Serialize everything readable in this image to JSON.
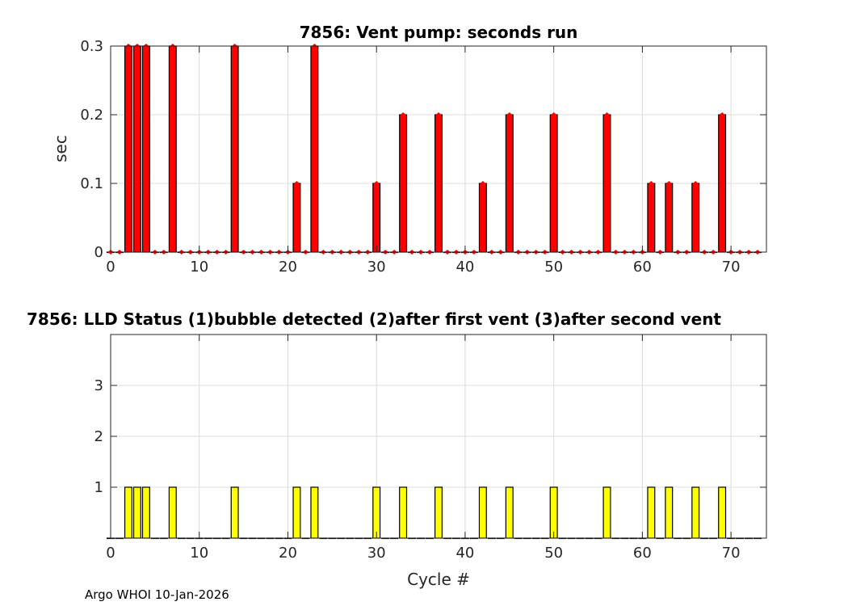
{
  "chart_data": [
    {
      "type": "bar",
      "title": "7856: Vent pump: seconds run",
      "xlabel": "",
      "ylabel": "sec",
      "xlim": [
        0,
        74
      ],
      "ylim": [
        0,
        0.3
      ],
      "xticks": [
        0,
        10,
        20,
        30,
        40,
        50,
        60,
        70
      ],
      "yticks": [
        0,
        0.1,
        0.2,
        0.3
      ],
      "ytick_labels": [
        "0",
        "0.1",
        "0.2",
        "0.3"
      ],
      "grid": true,
      "bar_color": "#ff0000",
      "marker_color": "#ff0000",
      "x": [
        0,
        1,
        2,
        3,
        4,
        5,
        6,
        7,
        8,
        9,
        10,
        11,
        12,
        13,
        14,
        15,
        16,
        17,
        18,
        19,
        20,
        21,
        22,
        23,
        24,
        25,
        26,
        27,
        28,
        29,
        30,
        31,
        32,
        33,
        34,
        35,
        36,
        37,
        38,
        39,
        40,
        41,
        42,
        43,
        44,
        45,
        46,
        47,
        48,
        49,
        50,
        51,
        52,
        53,
        54,
        55,
        56,
        57,
        58,
        59,
        60,
        61,
        62,
        63,
        64,
        65,
        66,
        67,
        68,
        69,
        70,
        71,
        72,
        73
      ],
      "values": [
        0,
        0,
        0.3,
        0.3,
        0.3,
        0,
        0,
        0.3,
        0,
        0,
        0,
        0,
        0,
        0,
        0.3,
        0,
        0,
        0,
        0,
        0,
        0,
        0.1,
        0,
        0.3,
        0,
        0,
        0,
        0,
        0,
        0,
        0.1,
        0,
        0,
        0.2,
        0,
        0,
        0,
        0.2,
        0,
        0,
        0,
        0,
        0.1,
        0,
        0,
        0.2,
        0,
        0,
        0,
        0,
        0.2,
        0,
        0,
        0,
        0,
        0,
        0.2,
        0,
        0,
        0,
        0,
        0.1,
        0,
        0.1,
        0,
        0,
        0.1,
        0,
        0,
        0.2,
        0,
        0,
        0,
        0
      ]
    },
    {
      "type": "bar",
      "title": "7856: LLD Status   (1)bubble detected   (2)after first vent  (3)after second vent",
      "xlabel": "Cycle #",
      "ylabel": "",
      "xlim": [
        0,
        74
      ],
      "ylim": [
        0,
        4
      ],
      "xticks": [
        0,
        10,
        20,
        30,
        40,
        50,
        60,
        70
      ],
      "yticks": [
        1,
        2,
        3
      ],
      "ytick_labels": [
        "1",
        "2",
        "3"
      ],
      "grid": true,
      "bar_color": "#ffff00",
      "x": [
        0,
        1,
        2,
        3,
        4,
        5,
        6,
        7,
        8,
        9,
        10,
        11,
        12,
        13,
        14,
        15,
        16,
        17,
        18,
        19,
        20,
        21,
        22,
        23,
        24,
        25,
        26,
        27,
        28,
        29,
        30,
        31,
        32,
        33,
        34,
        35,
        36,
        37,
        38,
        39,
        40,
        41,
        42,
        43,
        44,
        45,
        46,
        47,
        48,
        49,
        50,
        51,
        52,
        53,
        54,
        55,
        56,
        57,
        58,
        59,
        60,
        61,
        62,
        63,
        64,
        65,
        66,
        67,
        68,
        69,
        70,
        71,
        72,
        73
      ],
      "values": [
        0,
        0,
        1,
        1,
        1,
        0,
        0,
        1,
        0,
        0,
        0,
        0,
        0,
        0,
        1,
        0,
        0,
        0,
        0,
        0,
        0,
        1,
        0,
        1,
        0,
        0,
        0,
        0,
        0,
        0,
        1,
        0,
        0,
        1,
        0,
        0,
        0,
        1,
        0,
        0,
        0,
        0,
        1,
        0,
        0,
        1,
        0,
        0,
        0,
        0,
        1,
        0,
        0,
        0,
        0,
        0,
        1,
        0,
        0,
        0,
        0,
        1,
        0,
        1,
        0,
        0,
        1,
        0,
        0,
        1,
        0,
        0,
        0,
        0
      ]
    }
  ],
  "footer": "Argo WHOI 10-Jan-2026"
}
